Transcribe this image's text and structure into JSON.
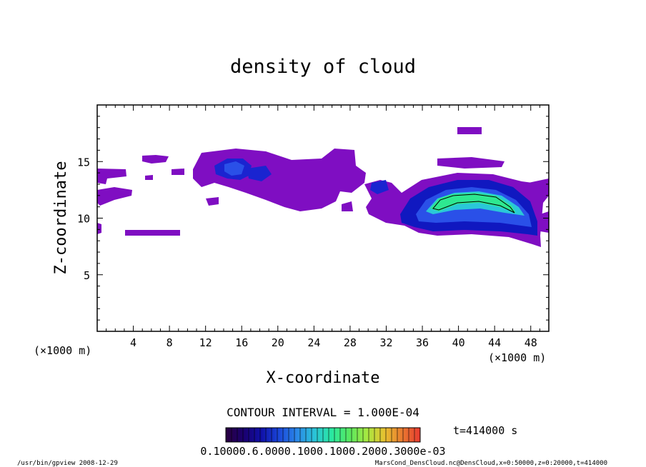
{
  "chart_data": {
    "type": "heatmap",
    "title": "density of cloud",
    "xlabel": "X-coordinate",
    "ylabel": "Z-coordinate",
    "x_unit_left": "(×1000 m)",
    "x_unit_right": "(×1000 m)",
    "xlim": [
      0,
      50
    ],
    "ylim": [
      0,
      20
    ],
    "x_ticks": [
      4,
      8,
      12,
      16,
      20,
      24,
      28,
      32,
      36,
      40,
      44,
      48
    ],
    "y_ticks": [
      5,
      10,
      15
    ],
    "contour_interval": "CONTOUR INTERVAL = 1.000E-04",
    "time_label": "t=414000 s",
    "colorbar_labels": "0.10000.6.0000.1000.1000.2000.3000e-03",
    "colorbar_stops": [
      "#2a0040",
      "#1a006e",
      "#1010a8",
      "#1a46d8",
      "#2a86e8",
      "#2ac2d8",
      "#2ae8a0",
      "#58e860",
      "#a8e840",
      "#e8c030",
      "#e87830",
      "#e83a30"
    ],
    "colors": {
      "purple": "#7f0ec2",
      "blue_dark": "#1a24d0",
      "blue": "#2a50e8",
      "cyan": "#2ac8d8",
      "green": "#2ee890"
    },
    "footer_left": "/usr/bin/gpview  2008-12-29",
    "footer_right": "MarsCond_DensCloud.nc@DensCloud,x=0:50000,z=0:20000,t=414000"
  }
}
